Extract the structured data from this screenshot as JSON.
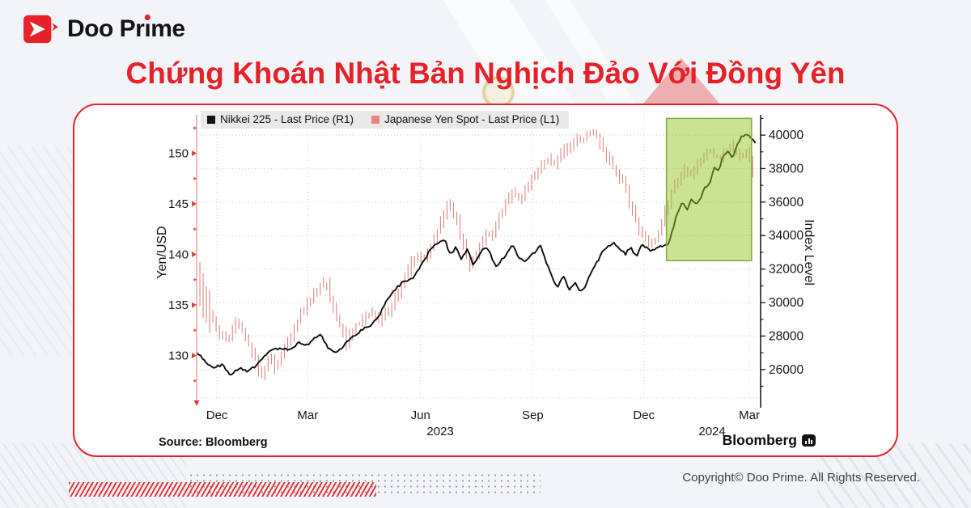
{
  "header": {
    "brand": "Doo Prime",
    "title": "Chứng Khoán Nhật Bản Nghịch Đảo Với Đồng Yên"
  },
  "footer": {
    "source_label": "Source:",
    "source_value": "Bloomberg",
    "bloomberg_wordmark": "Bloomberg",
    "copyright": "Copyright© Doo Prime. All Rights Reserved."
  },
  "colors": {
    "accent_red": "#e62129",
    "nikkei_line": "#0b0b0b",
    "yen_bars": "#d98884",
    "legend_yen_swatch": "#f2807c",
    "legend_nikkei_swatch": "#111111",
    "highlight_fill": "rgba(150,198,40,0.5)",
    "highlight_stroke": "#84a93c",
    "left_axis_spine": "#e59593",
    "left_axis_arrow": "#d94040"
  },
  "chart_data": {
    "type": "line",
    "title": "",
    "legend": [
      {
        "label": "Nikkei 225 - Last Price (R1)",
        "color": "#111111"
      },
      {
        "label": "Japanese Yen Spot - Last Price (L1)",
        "color": "#f2807c"
      }
    ],
    "left_axis": {
      "title": "Yen/USD",
      "min": 125.8,
      "max": 153.8,
      "majors": [
        130,
        135,
        140,
        145,
        150
      ],
      "minors": [
        127.5,
        132.5,
        137.5,
        142.5,
        147.5,
        152.5
      ]
    },
    "right_axis": {
      "title": "Index Level",
      "min": 24300,
      "max": 41210,
      "majors": [
        26000,
        28000,
        30000,
        32000,
        34000,
        36000,
        38000,
        40000
      ],
      "minor_step": 1000
    },
    "x_axis": {
      "ticks": [
        {
          "label": "Dec",
          "t": 0.036
        },
        {
          "label": "Mar",
          "t": 0.197
        },
        {
          "label": "Jun",
          "t": 0.397
        },
        {
          "label": "Sep",
          "t": 0.596
        },
        {
          "label": "Dec",
          "t": 0.793
        },
        {
          "label": "Mar",
          "t": 0.98
        }
      ],
      "years": [
        {
          "label": "2023",
          "t": 0.432
        },
        {
          "label": "2024",
          "t": 0.914
        }
      ]
    },
    "grid": "dotted",
    "legend_position": "top-left",
    "highlight_box": {
      "t0": 0.833,
      "t1": 0.984,
      "v0": 32500,
      "v1": 41000,
      "axis": "right"
    },
    "series": [
      {
        "name": "Japanese Yen Spot - Last Price (L1)",
        "axis": "left",
        "style": "hl-bars",
        "points": [
          [
            0,
            137.5
          ],
          [
            0.012,
            135.5
          ],
          [
            0.025,
            134
          ],
          [
            0.04,
            132
          ],
          [
            0.055,
            131.5
          ],
          [
            0.07,
            133.5
          ],
          [
            0.085,
            132
          ],
          [
            0.1,
            130
          ],
          [
            0.115,
            127.8
          ],
          [
            0.128,
            129.8
          ],
          [
            0.14,
            128.6
          ],
          [
            0.155,
            130.5
          ],
          [
            0.17,
            132.3
          ],
          [
            0.185,
            134
          ],
          [
            0.2,
            135.5
          ],
          [
            0.215,
            136.5
          ],
          [
            0.228,
            137.4
          ],
          [
            0.24,
            135
          ],
          [
            0.252,
            133
          ],
          [
            0.265,
            131.3
          ],
          [
            0.28,
            132.7
          ],
          [
            0.295,
            133.5
          ],
          [
            0.31,
            134.3
          ],
          [
            0.325,
            133.6
          ],
          [
            0.34,
            134.5
          ],
          [
            0.355,
            136
          ],
          [
            0.37,
            138
          ],
          [
            0.385,
            139.8
          ],
          [
            0.4,
            139.4
          ],
          [
            0.415,
            140.8
          ],
          [
            0.43,
            143
          ],
          [
            0.445,
            144.9
          ],
          [
            0.458,
            143.8
          ],
          [
            0.47,
            141.3
          ],
          [
            0.485,
            138.8
          ],
          [
            0.5,
            140.8
          ],
          [
            0.515,
            142
          ],
          [
            0.53,
            142.8
          ],
          [
            0.545,
            144.6
          ],
          [
            0.56,
            146.2
          ],
          [
            0.575,
            145.4
          ],
          [
            0.59,
            147.3
          ],
          [
            0.605,
            148.6
          ],
          [
            0.62,
            149.4
          ],
          [
            0.635,
            149
          ],
          [
            0.65,
            150.2
          ],
          [
            0.665,
            150.8
          ],
          [
            0.68,
            151.4
          ],
          [
            0.695,
            151.7
          ],
          [
            0.708,
            151.9
          ],
          [
            0.72,
            150.4
          ],
          [
            0.732,
            149.3
          ],
          [
            0.745,
            147.5
          ],
          [
            0.758,
            147
          ],
          [
            0.77,
            144.6
          ],
          [
            0.782,
            142.8
          ],
          [
            0.795,
            141.5
          ],
          [
            0.806,
            140.9
          ],
          [
            0.818,
            142.2
          ],
          [
            0.83,
            144
          ],
          [
            0.842,
            146
          ],
          [
            0.854,
            147.6
          ],
          [
            0.866,
            148.3
          ],
          [
            0.878,
            147.9
          ],
          [
            0.89,
            149.1
          ],
          [
            0.902,
            150.3
          ],
          [
            0.914,
            150.1
          ],
          [
            0.926,
            149.6
          ],
          [
            0.938,
            150.4
          ],
          [
            0.95,
            150.7
          ],
          [
            0.962,
            149.8
          ],
          [
            0.974,
            150.1
          ],
          [
            0.986,
            148.2
          ]
        ]
      },
      {
        "name": "Nikkei 225 - Last Price (R1)",
        "axis": "right",
        "style": "line",
        "points": [
          [
            0,
            27000
          ],
          [
            0.015,
            26500
          ],
          [
            0.03,
            26100
          ],
          [
            0.045,
            26300
          ],
          [
            0.06,
            25700
          ],
          [
            0.075,
            26100
          ],
          [
            0.09,
            25900
          ],
          [
            0.105,
            26200
          ],
          [
            0.12,
            26800
          ],
          [
            0.135,
            27200
          ],
          [
            0.15,
            27300
          ],
          [
            0.165,
            27150
          ],
          [
            0.18,
            27600
          ],
          [
            0.195,
            27450
          ],
          [
            0.21,
            27900
          ],
          [
            0.22,
            28050
          ],
          [
            0.235,
            27200
          ],
          [
            0.25,
            27000
          ],
          [
            0.265,
            27600
          ],
          [
            0.28,
            28000
          ],
          [
            0.295,
            28400
          ],
          [
            0.31,
            28700
          ],
          [
            0.325,
            29300
          ],
          [
            0.34,
            30300
          ],
          [
            0.355,
            30900
          ],
          [
            0.37,
            31300
          ],
          [
            0.385,
            31500
          ],
          [
            0.4,
            32300
          ],
          [
            0.415,
            33200
          ],
          [
            0.43,
            33600
          ],
          [
            0.44,
            33750
          ],
          [
            0.45,
            32800
          ],
          [
            0.46,
            33300
          ],
          [
            0.47,
            32600
          ],
          [
            0.48,
            33200
          ],
          [
            0.49,
            32300
          ],
          [
            0.5,
            32700
          ],
          [
            0.51,
            33300
          ],
          [
            0.52,
            33000
          ],
          [
            0.53,
            32100
          ],
          [
            0.54,
            32500
          ],
          [
            0.55,
            32900
          ],
          [
            0.56,
            33400
          ],
          [
            0.57,
            32800
          ],
          [
            0.58,
            32400
          ],
          [
            0.59,
            32700
          ],
          [
            0.6,
            33000
          ],
          [
            0.61,
            33400
          ],
          [
            0.62,
            32400
          ],
          [
            0.63,
            31500
          ],
          [
            0.64,
            30900
          ],
          [
            0.65,
            31700
          ],
          [
            0.66,
            30700
          ],
          [
            0.67,
            31200
          ],
          [
            0.68,
            30600
          ],
          [
            0.69,
            31000
          ],
          [
            0.7,
            31900
          ],
          [
            0.71,
            32400
          ],
          [
            0.72,
            33100
          ],
          [
            0.73,
            33400
          ],
          [
            0.74,
            33550
          ],
          [
            0.75,
            33200
          ],
          [
            0.76,
            32900
          ],
          [
            0.77,
            33300
          ],
          [
            0.78,
            32700
          ],
          [
            0.79,
            33500
          ],
          [
            0.8,
            33200
          ],
          [
            0.81,
            33100
          ],
          [
            0.82,
            33400
          ],
          [
            0.83,
            33350
          ],
          [
            0.838,
            33600
          ],
          [
            0.846,
            34600
          ],
          [
            0.854,
            35500
          ],
          [
            0.862,
            36000
          ],
          [
            0.87,
            35600
          ],
          [
            0.878,
            36200
          ],
          [
            0.886,
            35800
          ],
          [
            0.894,
            36300
          ],
          [
            0.902,
            36900
          ],
          [
            0.91,
            37100
          ],
          [
            0.918,
            38100
          ],
          [
            0.926,
            37900
          ],
          [
            0.934,
            38800
          ],
          [
            0.942,
            39100
          ],
          [
            0.95,
            38600
          ],
          [
            0.958,
            39400
          ],
          [
            0.966,
            39900
          ],
          [
            0.974,
            40100
          ],
          [
            0.982,
            39900
          ],
          [
            0.99,
            39500
          ]
        ]
      }
    ]
  }
}
